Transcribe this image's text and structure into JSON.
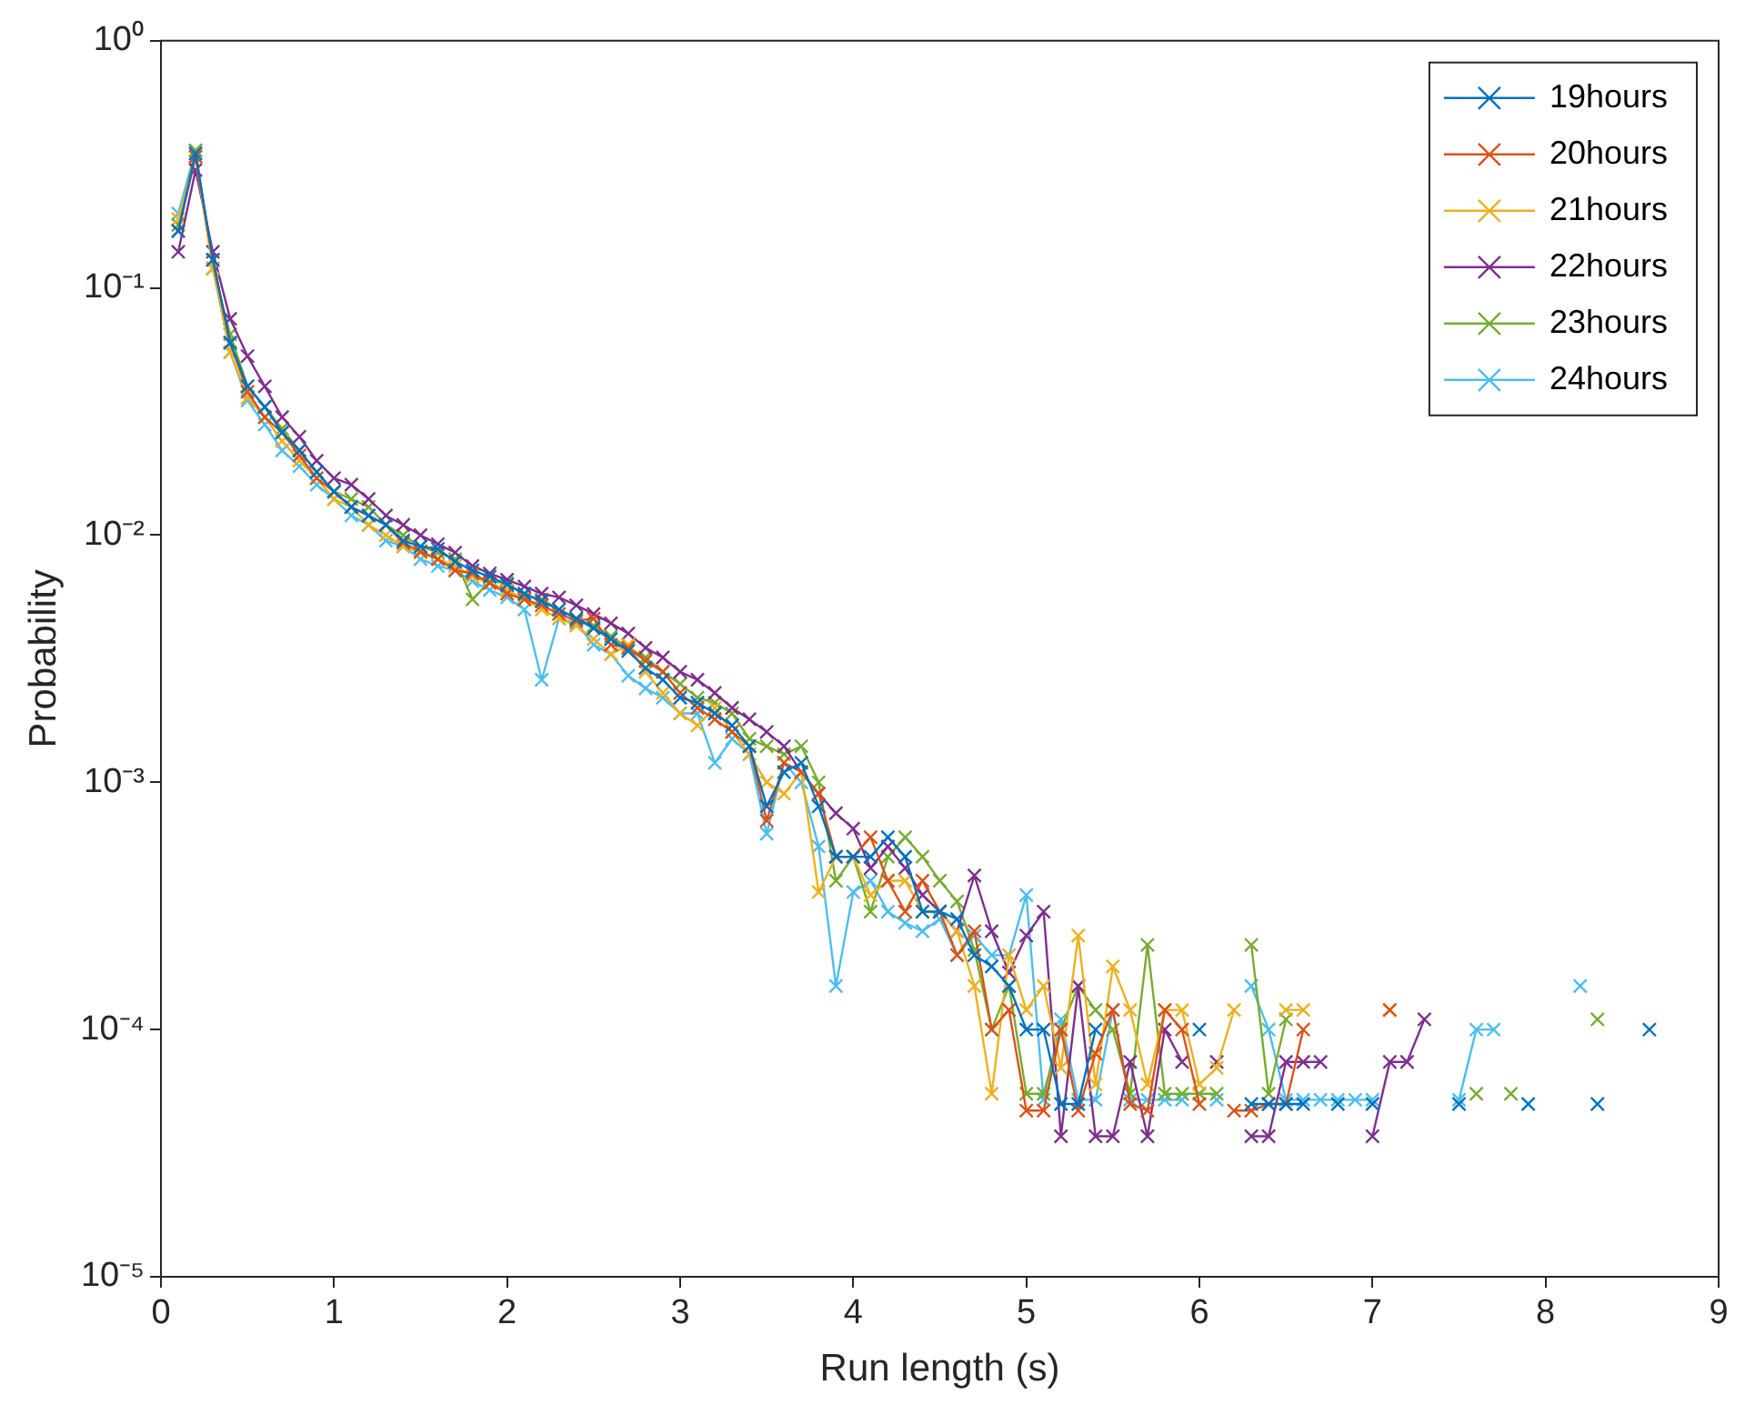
{
  "chart_data": {
    "type": "line",
    "xlabel": "Run length (s)",
    "ylabel": "Probability",
    "log": "y",
    "grid": false,
    "legend": "top right",
    "marker": "cross",
    "line_style": "solid",
    "x": [
      0.1,
      0.2,
      0.3,
      0.4,
      0.5,
      0.6,
      0.7,
      0.8,
      0.9,
      1.0,
      1.1,
      1.2,
      1.3,
      1.4,
      1.5,
      1.6,
      1.7,
      1.8,
      1.9,
      2.0,
      2.1,
      2.2,
      2.3,
      2.4,
      2.5,
      2.6,
      2.7,
      2.8,
      2.9,
      3.0,
      3.1,
      3.2,
      3.3,
      3.4,
      3.5,
      3.6,
      3.7,
      3.8,
      3.9,
      4.0,
      4.1,
      4.2,
      4.3,
      4.4,
      4.5,
      4.6,
      4.7,
      4.8,
      4.9,
      5.0,
      5.1,
      5.2,
      5.3,
      5.4,
      5.5,
      5.6,
      5.7,
      5.8,
      5.9,
      6.0,
      6.1,
      6.2,
      6.3,
      6.4,
      6.5,
      6.6,
      6.7,
      6.8,
      6.9,
      7.0,
      7.1,
      7.2,
      7.3,
      7.4,
      7.5,
      7.6,
      7.7,
      7.8,
      7.9,
      8.0,
      8.1,
      8.2,
      8.3,
      8.4,
      8.5,
      8.6
    ],
    "xlim": [
      0,
      9
    ],
    "xticks": [
      0,
      1,
      2,
      3,
      4,
      5,
      6,
      7,
      8,
      9
    ],
    "ylim": [
      1e-05,
      1
    ],
    "yticks": [
      {
        "value": 1e-05,
        "label": "10⁻⁵"
      },
      {
        "value": 0.0001,
        "label": "10⁻⁴"
      },
      {
        "value": 0.001,
        "label": "10⁻³"
      },
      {
        "value": 0.01,
        "label": "10⁻²"
      },
      {
        "value": 0.1,
        "label": "10⁻¹"
      },
      {
        "value": 1,
        "label": "10⁰"
      }
    ],
    "series": [
      {
        "name": "19hours",
        "color": "#0072bd",
        "values": [
          0.17,
          0.35,
          0.13,
          0.06,
          0.04,
          0.033,
          0.026,
          0.022,
          0.018,
          0.015,
          0.013,
          0.012,
          0.011,
          0.0095,
          0.009,
          0.0088,
          0.0078,
          0.0072,
          0.0068,
          0.0063,
          0.0058,
          0.0054,
          0.005,
          0.0046,
          0.0042,
          0.0038,
          0.0034,
          0.0029,
          0.0026,
          0.0022,
          0.0021,
          0.0019,
          0.0017,
          0.0014,
          0.0008,
          0.0011,
          0.0012,
          0.0008,
          0.0005,
          0.0005,
          0.0005,
          0.0006,
          0.0005,
          0.0003,
          0.0003,
          0.00028,
          0.0002,
          0.00018,
          0.00015,
          0.0001,
          0.0001,
          5e-05,
          5e-05,
          0.0001,
          null,
          null,
          null,
          null,
          null,
          0.0001,
          null,
          null,
          5e-05,
          5e-05,
          5e-05,
          5e-05,
          null,
          5e-05,
          null,
          5e-05,
          null,
          null,
          null,
          null,
          5e-05,
          null,
          null,
          null,
          5e-05,
          null,
          null,
          null,
          5e-05,
          null,
          null,
          0.0001
        ]
      },
      {
        "name": "20hours",
        "color": "#d95319",
        "values": [
          0.17,
          0.34,
          0.13,
          0.06,
          0.038,
          0.03,
          0.026,
          0.021,
          0.017,
          0.015,
          0.013,
          0.012,
          0.011,
          0.0093,
          0.0086,
          0.008,
          0.0072,
          0.007,
          0.0064,
          0.0058,
          0.0055,
          0.0052,
          0.0048,
          0.0045,
          0.0046,
          0.0036,
          0.0035,
          0.0031,
          0.0028,
          0.0023,
          0.002,
          0.0018,
          0.0016,
          0.0014,
          0.0007,
          0.0012,
          0.0011,
          0.0009,
          0.0005,
          0.0005,
          0.0006,
          0.0004,
          0.0003,
          0.0004,
          0.0003,
          0.0002,
          0.00025,
          0.0001,
          0.00012,
          4.7e-05,
          4.7e-05,
          0.0001,
          4.7e-05,
          8e-05,
          0.00012,
          5e-05,
          4.7e-05,
          0.00012,
          0.0001,
          5e-05,
          null,
          4.7e-05,
          4.7e-05,
          5e-05,
          5e-05,
          0.0001,
          null,
          null,
          null,
          null,
          0.00012,
          null,
          null,
          null,
          null,
          null,
          null,
          null,
          null,
          null,
          null,
          null,
          null,
          null,
          null,
          null
        ]
      },
      {
        "name": "21hours",
        "color": "#edb120",
        "values": [
          0.19,
          0.34,
          0.12,
          0.055,
          0.036,
          0.03,
          0.024,
          0.02,
          0.017,
          0.014,
          0.013,
          0.011,
          0.01,
          0.009,
          0.0085,
          0.008,
          0.0075,
          0.0068,
          0.0064,
          0.006,
          0.0055,
          0.005,
          0.0046,
          0.0043,
          0.0038,
          0.0033,
          0.0036,
          0.0028,
          0.0023,
          0.0019,
          0.0017,
          0.002,
          0.0016,
          0.0013,
          0.001,
          0.0009,
          0.0011,
          0.00036,
          0.0005,
          0.0005,
          0.00035,
          0.0004,
          0.0004,
          0.0003,
          0.0003,
          0.00025,
          0.00015,
          5.5e-05,
          0.0002,
          0.00012,
          0.00015,
          7e-05,
          0.00024,
          6e-05,
          0.00018,
          0.00012,
          6e-05,
          0.00012,
          0.00012,
          6e-05,
          7e-05,
          0.00012,
          null,
          null,
          0.00012,
          0.00012,
          null,
          null,
          null,
          null,
          0.00012,
          null,
          null,
          null,
          null,
          null,
          null,
          null,
          null,
          null,
          null,
          null,
          null,
          null,
          null,
          null
        ]
      },
      {
        "name": "22hours",
        "color": "#7e2f8e",
        "values": [
          0.14,
          0.3,
          0.14,
          0.075,
          0.053,
          0.04,
          0.03,
          0.025,
          0.02,
          0.017,
          0.016,
          0.014,
          0.012,
          0.011,
          0.01,
          0.0092,
          0.0085,
          0.0075,
          0.007,
          0.0066,
          0.0062,
          0.0058,
          0.0056,
          0.0052,
          0.0048,
          0.0044,
          0.004,
          0.0035,
          0.0032,
          0.0028,
          0.0026,
          0.0023,
          0.002,
          0.0018,
          0.0016,
          0.0014,
          0.0011,
          0.0009,
          0.00075,
          0.00065,
          0.00045,
          0.00055,
          0.00045,
          0.00035,
          0.0003,
          0.00025,
          0.00042,
          0.00025,
          0.00017,
          0.00024,
          0.0003,
          3.7e-05,
          0.00015,
          3.7e-05,
          3.7e-05,
          7.4e-05,
          3.7e-05,
          0.0001,
          7.4e-05,
          null,
          7.4e-05,
          null,
          3.7e-05,
          3.7e-05,
          7.4e-05,
          7.4e-05,
          7.4e-05,
          null,
          null,
          3.7e-05,
          7.4e-05,
          7.4e-05,
          0.00011,
          null,
          null,
          null,
          null,
          null,
          null,
          null,
          null,
          null,
          null,
          null,
          null,
          null
        ]
      },
      {
        "name": "23hours",
        "color": "#77ac30",
        "values": [
          0.18,
          0.36,
          0.12,
          0.065,
          0.04,
          0.033,
          0.027,
          0.022,
          0.018,
          0.015,
          0.014,
          0.013,
          0.011,
          0.01,
          0.009,
          0.0085,
          0.008,
          0.0055,
          0.0065,
          0.0064,
          0.0057,
          0.0055,
          0.005,
          0.0046,
          0.0043,
          0.0039,
          0.0035,
          0.0032,
          0.0028,
          0.0025,
          0.0022,
          0.0021,
          0.0019,
          0.0015,
          0.0014,
          0.0013,
          0.0014,
          0.001,
          0.0004,
          0.0005,
          0.0003,
          0.0005,
          0.0006,
          0.0005,
          0.0004,
          0.00033,
          0.00021,
          0.0001,
          0.00015,
          5.5e-05,
          5.5e-05,
          0.0001,
          0.00015,
          0.00012,
          0.0001,
          5.5e-05,
          0.00022,
          5.5e-05,
          5.5e-05,
          5.5e-05,
          5.5e-05,
          null,
          0.00022,
          5.5e-05,
          0.00011,
          null,
          null,
          null,
          null,
          null,
          null,
          null,
          null,
          null,
          null,
          5.5e-05,
          null,
          5.5e-05,
          null,
          null,
          null,
          null,
          0.00011,
          null,
          null,
          null
        ]
      },
      {
        "name": "24hours",
        "color": "#4dbeee",
        "values": [
          0.2,
          0.36,
          0.12,
          0.055,
          0.035,
          0.028,
          0.022,
          0.019,
          0.016,
          0.014,
          0.012,
          0.011,
          0.0095,
          0.009,
          0.008,
          0.0075,
          0.0072,
          0.0065,
          0.006,
          0.0056,
          0.005,
          0.0026,
          0.0046,
          0.0044,
          0.0036,
          0.0033,
          0.0027,
          0.0024,
          0.0022,
          0.0019,
          0.0019,
          0.0012,
          0.0015,
          0.0013,
          0.00062,
          0.0012,
          0.001,
          0.00055,
          0.00015,
          0.00036,
          0.0004,
          0.0003,
          0.00027,
          0.00025,
          0.00028,
          0.0002,
          0.00024,
          0.0002,
          0.0002,
          0.00035,
          5.2e-05,
          0.00011,
          5.2e-05,
          5.2e-05,
          0.00012,
          5.2e-05,
          5.2e-05,
          5.2e-05,
          5.2e-05,
          null,
          5.2e-05,
          null,
          0.00015,
          0.0001,
          5.2e-05,
          5.2e-05,
          5.2e-05,
          5.2e-05,
          5.2e-05,
          5.2e-05,
          null,
          null,
          null,
          null,
          5.2e-05,
          0.0001,
          0.0001,
          null,
          null,
          null,
          null,
          0.00015,
          null,
          null,
          null,
          null
        ]
      }
    ]
  }
}
